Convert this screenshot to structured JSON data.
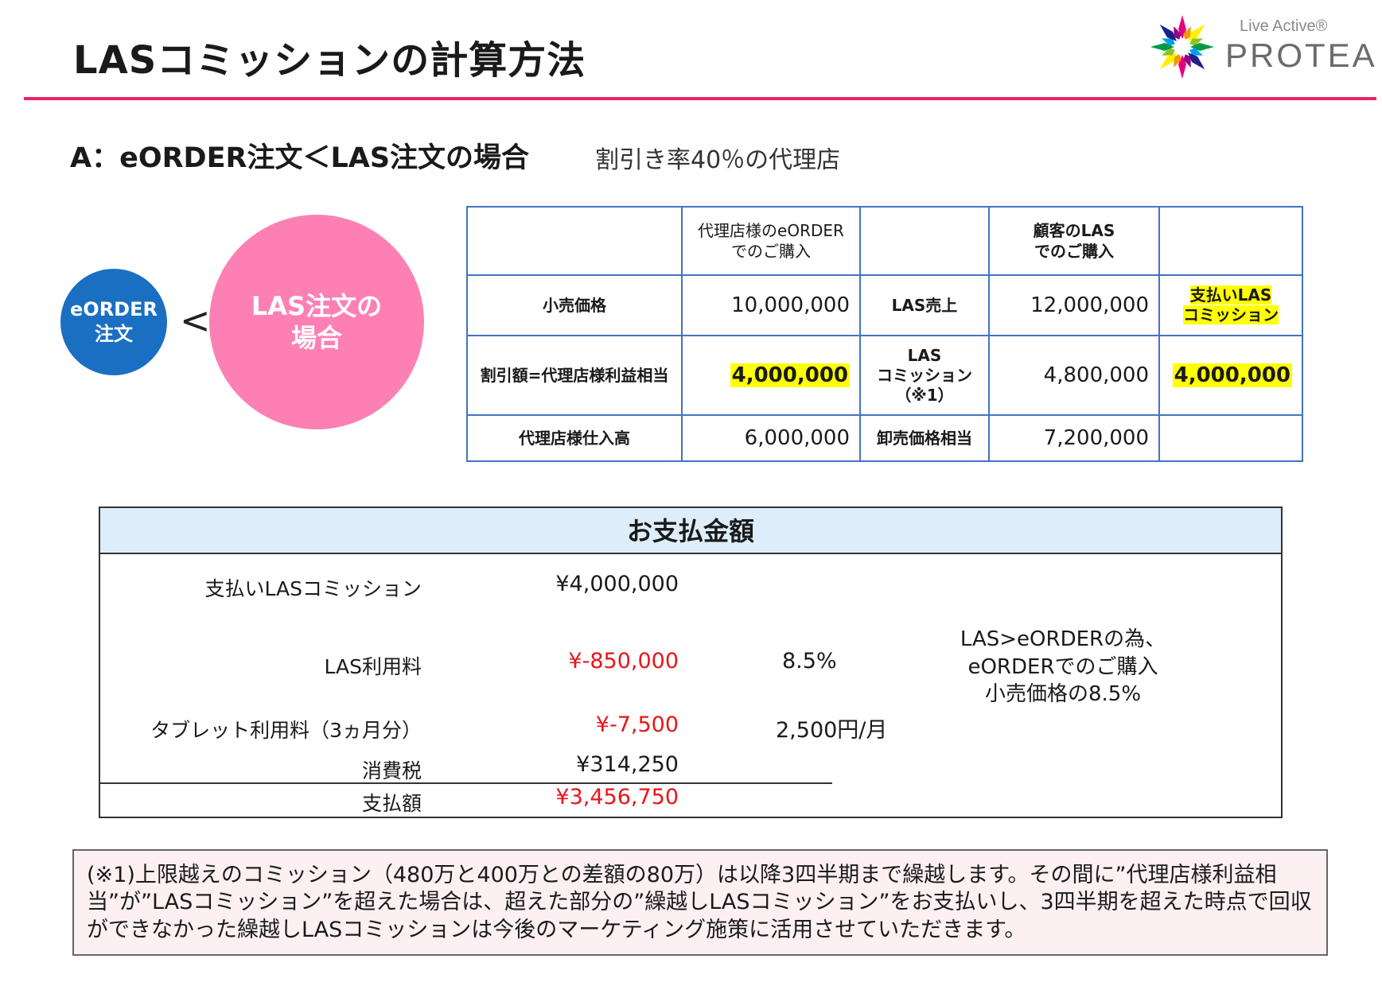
{
  "title": "LASコミッションの計算方法",
  "logo": {
    "tagline": "Live Active®",
    "wordmark": "PROTEA",
    "colors": [
      "#e4007f",
      "#f39800",
      "#fff100",
      "#8fc31f",
      "#009944",
      "#00a0e9",
      "#1d2088",
      "#920783"
    ]
  },
  "section": {
    "heading": "A：eORDER注文＜LAS注文の場合",
    "note": "割引き率40％の代理店"
  },
  "compare": {
    "left": "eORDER\n注文",
    "sign": "<",
    "right": "LAS注文の\n場合",
    "left_color": "#1a6fc2",
    "right_color": "#fd80b5"
  },
  "table": {
    "headers": [
      "",
      "代理店様のeORDER\nでのご購入",
      "",
      "顧客のLAS\nでのご購入",
      ""
    ],
    "rows": [
      {
        "label": "小売価格",
        "eorder": "10,000,000",
        "las_label": "LAS売上",
        "las": "12,000,000",
        "extra": "支払いLAS\nコミッション"
      },
      {
        "label": "割引額=代理店様利益相当",
        "eorder": "4,000,000",
        "las_label": "LAS\nコミッション\n（※1）",
        "las": "4,800,000",
        "extra": "4,000,000"
      },
      {
        "label": "代理店様仕入高",
        "eorder": "6,000,000",
        "las_label": "卸売価格相当",
        "las": "7,200,000",
        "extra": ""
      }
    ],
    "highlight_color": "#ffff00",
    "border_color": "#4472c4"
  },
  "payment": {
    "title": "お支払金額",
    "rows": [
      {
        "label": "支払いLASコミッション",
        "value": "¥4,000,000",
        "rate": ""
      },
      {
        "label": "LAS利用料",
        "value": "¥-850,000",
        "rate": "8.5%"
      },
      {
        "label": "タブレット利用料（3ヵ月分）",
        "value": "¥-7,500",
        "rate": "2,500円/月"
      },
      {
        "label": "消費税",
        "value": "¥314,250",
        "rate": ""
      },
      {
        "label": "支払額",
        "value": "¥3,456,750",
        "rate": ""
      }
    ],
    "note": "LAS>eORDERの為、\neORDERでのご購入\n小売価格の8.5%",
    "negative_color": "#e8151b",
    "header_color": "#ddeefa"
  },
  "footnote": "(※1)上限越えのコミッション（480万と400万との差額の80万）は以降3四半期まで繰越します。その間に”代理店様利益相当”が”LASコミッション”を超えた場合は、超えた部分の”繰越しLASコミッション”をお支払いし、3四半期を超えた時点で回収ができなかった繰越しLASコミッションは今後のマーケティング施策に活用させていただきます。"
}
